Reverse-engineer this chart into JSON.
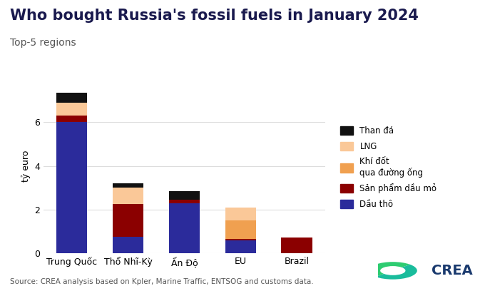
{
  "title": "Who bought Russia's fossil fuels in January 2024",
  "subtitle": "Top-5 regions",
  "ylabel": "tỷ euro",
  "source": "Source: CREA analysis based on Kpler, Marine Traffic, ENTSOG and customs data.",
  "categories": [
    "Trung Quốc",
    "Thổ Nhĩ-Kỳ",
    "Ấn Độ",
    "EU",
    "Brazil"
  ],
  "series": {
    "Dầu thô": [
      6.0,
      0.75,
      2.3,
      0.6,
      0.0
    ],
    "Sản phẩm dầu mỏ": [
      0.3,
      1.5,
      0.15,
      0.05,
      0.72
    ],
    "Khí đốt\nqua đường ống": [
      0.0,
      0.0,
      0.0,
      0.85,
      0.0
    ],
    "LNG": [
      0.6,
      0.75,
      0.0,
      0.6,
      0.0
    ],
    "Than đá": [
      0.45,
      0.2,
      0.4,
      0.0,
      0.0
    ]
  },
  "colors": {
    "Dầu thô": "#2B2B9B",
    "Sản phẩm dầu mỏ": "#8B0000",
    "Khí đốt\nqua đường ống": "#F0A050",
    "LNG": "#FAC898",
    "Than đá": "#111111"
  },
  "ylim": [
    0,
    8
  ],
  "yticks": [
    0,
    2,
    4,
    6
  ],
  "background_color": "#FFFFFF",
  "plot_bg_color": "#FFFFFF",
  "grid_color": "#DDDDDD",
  "title_fontsize": 15,
  "subtitle_fontsize": 10,
  "ylabel_fontsize": 9,
  "legend_fontsize": 8.5,
  "tick_fontsize": 9,
  "source_fontsize": 7.5,
  "bar_width": 0.55
}
